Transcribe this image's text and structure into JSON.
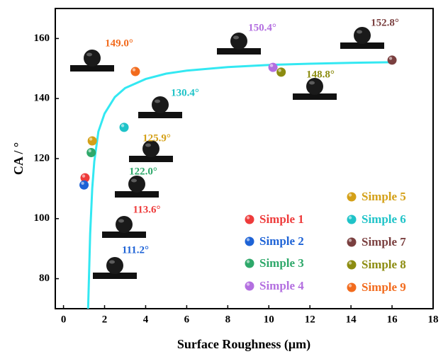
{
  "chart_data": {
    "type": "scatter",
    "x_label": "Surface Roughness (μm)",
    "y_label": "CA / °",
    "xlim": [
      -0.4,
      18
    ],
    "ylim": [
      70,
      170
    ],
    "xticks": [
      0,
      2,
      4,
      6,
      8,
      10,
      12,
      14,
      16,
      18
    ],
    "yticks": [
      80,
      100,
      120,
      140,
      160
    ],
    "series": [
      {
        "name": "Simple 1",
        "color": "#ee3b3b",
        "x": [
          1.05
        ],
        "values": [
          113.6
        ],
        "value_labels": [
          "113.6°"
        ]
      },
      {
        "name": "Simple 2",
        "color": "#1e63d6",
        "x": [
          1.0
        ],
        "values": [
          111.2
        ],
        "value_labels": [
          "111.2°"
        ]
      },
      {
        "name": "Simple 3",
        "color": "#2ea86a",
        "x": [
          1.35
        ],
        "values": [
          122.0
        ],
        "value_labels": [
          "122.0°"
        ]
      },
      {
        "name": "Simple 4",
        "color": "#b36fe0",
        "x": [
          10.2
        ],
        "values": [
          150.4
        ],
        "value_labels": [
          "150.4°"
        ]
      },
      {
        "name": "Simple 5",
        "color": "#d4a017",
        "x": [
          1.4
        ],
        "values": [
          125.9
        ],
        "value_labels": [
          "125.9°"
        ]
      },
      {
        "name": "Simple 6",
        "color": "#1fc3c8",
        "x": [
          2.95
        ],
        "values": [
          130.4
        ],
        "value_labels": [
          "130.4°"
        ]
      },
      {
        "name": "Simple 7",
        "color": "#7a3f3f",
        "x": [
          16.0
        ],
        "values": [
          152.8
        ],
        "value_labels": [
          "152.8°"
        ]
      },
      {
        "name": "Simple 8",
        "color": "#8c8c10",
        "x": [
          10.6
        ],
        "values": [
          148.8
        ],
        "value_labels": [
          "148.8°"
        ]
      },
      {
        "name": "Simple 9",
        "color": "#f26b1d",
        "x": [
          3.5
        ],
        "values": [
          149.0
        ],
        "value_labels": [
          "149.0°"
        ]
      }
    ],
    "fit": {
      "color": "#33e8f2",
      "x": [
        1.2,
        1.3,
        1.4,
        1.5,
        1.7,
        2.0,
        2.5,
        3.0,
        4.0,
        5.0,
        6.0,
        8.0,
        10.0,
        12.0,
        14.0,
        16.0
      ],
      "values": [
        70,
        95,
        110,
        119,
        129,
        135,
        140.5,
        143.5,
        146.5,
        148.3,
        149.3,
        150.5,
        151.2,
        151.6,
        151.9,
        152.1
      ]
    }
  }
}
